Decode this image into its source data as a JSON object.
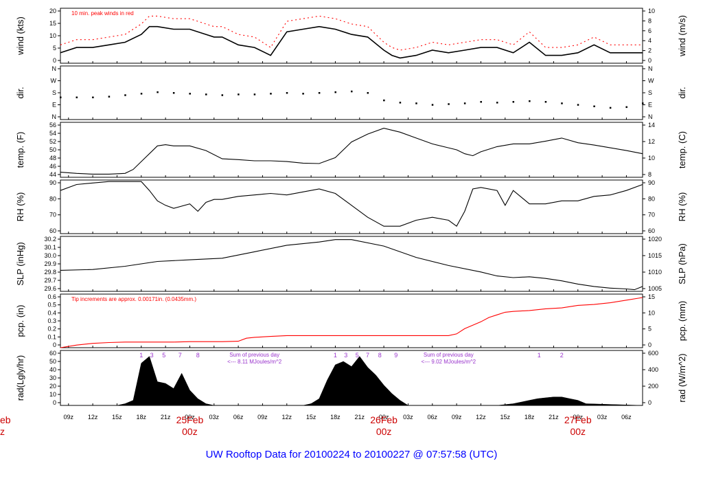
{
  "footer_title": "UW Rooftop Data for 20100224  to  20100227 @ 07:57:58  (UTC)",
  "colors": {
    "black": "#000000",
    "red": "#ff0000",
    "purple": "#9933cc",
    "blue": "#0000ff",
    "darkred": "#cc0000"
  },
  "time_axis": {
    "hour_ticks": [
      "09z",
      "12z",
      "15z",
      "18z",
      "21z",
      "00z",
      "03z",
      "06z",
      "09z",
      "12z",
      "15z",
      "18z",
      "21z",
      "00z",
      "03z",
      "06z",
      "09z",
      "12z",
      "15z",
      "18z",
      "21z",
      "00z",
      "03z",
      "06z"
    ],
    "hour_tick_positions": [
      1,
      4,
      7,
      10,
      13,
      16,
      19,
      22,
      25,
      28,
      31,
      34,
      37,
      40,
      43,
      46,
      49,
      52,
      55,
      58,
      61,
      64,
      67,
      70
    ],
    "date_labels": [
      {
        "date": "25Feb",
        "sub": "00z",
        "t": 16
      },
      {
        "date": "26Feb",
        "sub": "00z",
        "t": 40
      },
      {
        "date": "27Feb",
        "sub": "00z",
        "t": 64
      }
    ],
    "partial_date": {
      "date": "eb",
      "sub": "z"
    }
  },
  "chart_data": [
    {
      "type": "line",
      "id": "wind",
      "ylabel_left": "wind (kts)",
      "ylabel_right": "wind (m/s)",
      "yticks_left": [
        "0",
        "5",
        "10",
        "15",
        "20"
      ],
      "yticks_right": [
        "0",
        "2",
        "4",
        "6",
        "8",
        "10"
      ],
      "annotation": "10 min. peak winds in red",
      "series": [
        {
          "name": "wind",
          "x": [
            0,
            2,
            4,
            6,
            8,
            10,
            11,
            12,
            14,
            16,
            18,
            19,
            20,
            22,
            24,
            26,
            28,
            30,
            32,
            34,
            36,
            38,
            40,
            41,
            42,
            44,
            46,
            48,
            50,
            52,
            54,
            56,
            58,
            60,
            62,
            64,
            66,
            68,
            70,
            72
          ],
          "y": [
            4,
            6,
            6,
            7,
            8,
            11,
            14,
            14,
            13,
            13,
            11,
            10,
            10,
            7,
            6,
            3,
            12,
            13,
            14,
            13,
            11,
            10,
            5,
            3,
            2,
            3,
            5,
            4,
            5,
            6,
            6,
            4,
            8,
            3,
            3,
            4,
            7,
            4,
            4,
            4
          ]
        },
        {
          "name": "gust",
          "x": [
            0,
            2,
            4,
            6,
            8,
            10,
            11,
            12,
            14,
            16,
            18,
            19,
            20,
            22,
            24,
            26,
            28,
            30,
            32,
            34,
            36,
            38,
            40,
            41,
            42,
            44,
            46,
            48,
            50,
            52,
            54,
            56,
            58,
            60,
            62,
            64,
            66,
            68,
            70,
            72
          ],
          "y": [
            7,
            9,
            9,
            10,
            11,
            15,
            18,
            18,
            17,
            17,
            15,
            14,
            14,
            11,
            10,
            6,
            16,
            17,
            18,
            17,
            15,
            14,
            8,
            6,
            5,
            6,
            8,
            7,
            8,
            9,
            9,
            7,
            12,
            6,
            6,
            7,
            10,
            7,
            7,
            7
          ]
        }
      ],
      "ylim": [
        0,
        21
      ]
    },
    {
      "type": "scatter",
      "id": "dir",
      "ylabel_left": "dir.",
      "ylabel_right": "dir.",
      "yticks_left": [
        "N",
        "E",
        "S",
        "W",
        "N"
      ],
      "yticks_right": [
        "N",
        "E",
        "S",
        "W",
        "N"
      ],
      "series": [
        {
          "name": "direction",
          "x": [
            0,
            2,
            4,
            6,
            8,
            10,
            12,
            14,
            16,
            18,
            20,
            22,
            24,
            26,
            28,
            30,
            32,
            34,
            36,
            38,
            40,
            42,
            44,
            46,
            48,
            50,
            52,
            54,
            56,
            58,
            60,
            62,
            64,
            66,
            68,
            70,
            72
          ],
          "y": [
            150,
            150,
            150,
            155,
            165,
            175,
            185,
            180,
            175,
            170,
            165,
            170,
            170,
            175,
            180,
            175,
            180,
            185,
            190,
            180,
            130,
            115,
            110,
            100,
            105,
            110,
            120,
            115,
            120,
            125,
            120,
            110,
            100,
            90,
            80,
            85,
            110
          ]
        }
      ],
      "ylim": [
        0,
        360
      ]
    },
    {
      "type": "line",
      "id": "temp",
      "ylabel_left": "temp. (F)",
      "ylabel_right": "temp. (C)",
      "yticks_left": [
        "44",
        "46",
        "48",
        "50",
        "52",
        "54",
        "56"
      ],
      "yticks_right": [
        "8",
        "10",
        "12",
        "14"
      ],
      "series": [
        {
          "name": "temperature",
          "x": [
            0,
            2,
            4,
            6,
            8,
            9,
            10,
            12,
            13,
            14,
            16,
            18,
            20,
            22,
            24,
            26,
            28,
            30,
            32,
            34,
            36,
            38,
            40,
            42,
            44,
            46,
            48,
            49,
            50,
            51,
            52,
            54,
            56,
            58,
            60,
            62,
            64,
            66,
            68,
            70,
            72
          ],
          "y": [
            44.3,
            44,
            43.8,
            43.8,
            44,
            45,
            47,
            51,
            51.3,
            51,
            51,
            49.8,
            47.7,
            47.5,
            47.2,
            47.2,
            47,
            46.6,
            46.5,
            48,
            52,
            54,
            55.5,
            54.5,
            53,
            51.5,
            50.5,
            50,
            49,
            48.5,
            49.5,
            50.8,
            51.5,
            51.5,
            52.2,
            53,
            51.8,
            51.2,
            50.5,
            49.8,
            49
          ]
        }
      ],
      "ylim": [
        43,
        57
      ]
    },
    {
      "type": "line",
      "id": "rh",
      "ylabel_left": "RH (%)",
      "ylabel_right": "RH (%)",
      "yticks_left": [
        "60",
        "70",
        "80",
        "90"
      ],
      "yticks_right": [
        "60",
        "70",
        "80",
        "90"
      ],
      "series": [
        {
          "name": "relative_humidity",
          "x": [
            0,
            2,
            4,
            6,
            8,
            10,
            11,
            12,
            13,
            14,
            16,
            17,
            18,
            19,
            20,
            22,
            24,
            26,
            28,
            30,
            32,
            34,
            36,
            38,
            40,
            42,
            44,
            46,
            48,
            49,
            50,
            51,
            52,
            54,
            55,
            56,
            58,
            60,
            62,
            64,
            66,
            68,
            70,
            72
          ],
          "y": [
            86,
            90,
            91,
            92,
            92,
            92,
            86,
            79,
            76,
            74,
            77,
            72,
            78,
            80,
            80,
            82,
            83,
            84,
            83,
            85,
            87,
            84,
            76,
            68,
            62,
            62,
            66,
            68,
            66,
            62,
            72,
            87,
            88,
            86,
            76,
            86,
            77,
            77,
            79,
            79,
            82,
            83,
            86,
            90
          ]
        }
      ],
      "ylim": [
        57,
        93
      ]
    },
    {
      "type": "line",
      "id": "slp",
      "ylabel_left": "SLP (inHg)",
      "ylabel_right": "SLP (hPa)",
      "yticks_left": [
        "29.6",
        "29.7",
        "29.8",
        "29.9",
        "30.0",
        "30.1",
        "30.2"
      ],
      "yticks_right": [
        "1005",
        "1010",
        "1015",
        "1020"
      ],
      "series": [
        {
          "name": "sea_level_pressure",
          "x": [
            0,
            4,
            8,
            12,
            16,
            20,
            24,
            28,
            32,
            34,
            36,
            40,
            44,
            48,
            52,
            54,
            56,
            58,
            60,
            62,
            64,
            66,
            68,
            70,
            71,
            72
          ],
          "y": [
            29.82,
            29.83,
            29.87,
            29.93,
            29.95,
            29.97,
            30.05,
            30.13,
            30.17,
            30.2,
            30.2,
            30.12,
            29.98,
            29.88,
            29.8,
            29.75,
            29.73,
            29.74,
            29.72,
            29.69,
            29.65,
            29.62,
            29.6,
            29.59,
            29.58,
            29.62
          ]
        }
      ],
      "ylim": [
        29.56,
        30.24
      ]
    },
    {
      "type": "line",
      "id": "pcp",
      "ylabel_left": "pcp. (in)",
      "ylabel_right": "pcp. (mm)",
      "yticks_left": [
        "0",
        "0.1",
        "0.2",
        "0.3",
        "0.4",
        "0.5",
        "0.6"
      ],
      "yticks_right": [
        "0",
        "5",
        "10",
        "15"
      ],
      "annotation": "Tip increments are approx. 0.00171in. (0.0435mm.)",
      "series": [
        {
          "name": "precipitation",
          "x": [
            0,
            2,
            4,
            6,
            8,
            10,
            12,
            14,
            16,
            18,
            20,
            22,
            23,
            24,
            26,
            28,
            30,
            32,
            34,
            36,
            38,
            40,
            42,
            44,
            46,
            48,
            49,
            50,
            51,
            52,
            53,
            54,
            55,
            56,
            58,
            60,
            62,
            64,
            66,
            68,
            70,
            72
          ],
          "y": [
            0,
            0.03,
            0.05,
            0.06,
            0.065,
            0.065,
            0.065,
            0.065,
            0.07,
            0.07,
            0.07,
            0.075,
            0.11,
            0.12,
            0.13,
            0.14,
            0.14,
            0.14,
            0.14,
            0.14,
            0.14,
            0.14,
            0.14,
            0.14,
            0.14,
            0.14,
            0.16,
            0.22,
            0.26,
            0.3,
            0.35,
            0.38,
            0.41,
            0.42,
            0.43,
            0.45,
            0.46,
            0.49,
            0.5,
            0.52,
            0.55,
            0.58
          ]
        }
      ],
      "ylim": [
        0,
        0.62
      ]
    },
    {
      "type": "area",
      "id": "rad",
      "ylabel_left": "rad(Lgly/hr)",
      "ylabel_right": "rad (W/m^2)",
      "yticks_left": [
        "0",
        "10",
        "20",
        "30",
        "40",
        "50",
        "60"
      ],
      "yticks_right": [
        "0",
        "200",
        "400",
        "600"
      ],
      "hour_marks": [
        {
          "text": "1",
          "t": 10
        },
        {
          "text": "3",
          "t": 11.3
        },
        {
          "text": "5",
          "t": 12.8
        },
        {
          "text": "7",
          "t": 14.8
        },
        {
          "text": "8",
          "t": 17
        },
        {
          "text": "1",
          "t": 34
        },
        {
          "text": "3",
          "t": 35.3
        },
        {
          "text": "5",
          "t": 36.7
        },
        {
          "text": "7",
          "t": 38
        },
        {
          "text": "8",
          "t": 39.5
        },
        {
          "text": "9",
          "t": 41.5
        },
        {
          "text": "1",
          "t": 59.2
        },
        {
          "text": "2",
          "t": 62
        }
      ],
      "notes": [
        {
          "line1": "Sum of previous day",
          "line2": "<--- 8.11 MJoules/m^2",
          "t": 24
        },
        {
          "line1": "Sum of previous day",
          "line2": "<--- 9.02 MJoules/m^2",
          "t": 48
        }
      ],
      "series": [
        {
          "name": "radiation",
          "x": [
            0,
            7,
            8,
            9,
            10,
            11,
            12,
            13,
            14,
            15,
            16,
            17,
            18,
            19,
            30,
            31,
            32,
            33,
            34,
            35,
            36,
            37,
            38,
            39,
            40,
            41,
            42,
            43,
            54,
            55,
            56,
            57,
            58,
            59,
            60,
            61,
            62,
            63,
            64,
            65,
            72
          ],
          "y": [
            0,
            0,
            2,
            6,
            50,
            58,
            28,
            26,
            20,
            38,
            18,
            8,
            2,
            0,
            0,
            2,
            8,
            30,
            48,
            52,
            46,
            58,
            45,
            36,
            24,
            14,
            6,
            0,
            0,
            1,
            2,
            4,
            6,
            8,
            9,
            10,
            10,
            8,
            6,
            2,
            0
          ]
        }
      ],
      "ylim": [
        0,
        65
      ]
    }
  ]
}
